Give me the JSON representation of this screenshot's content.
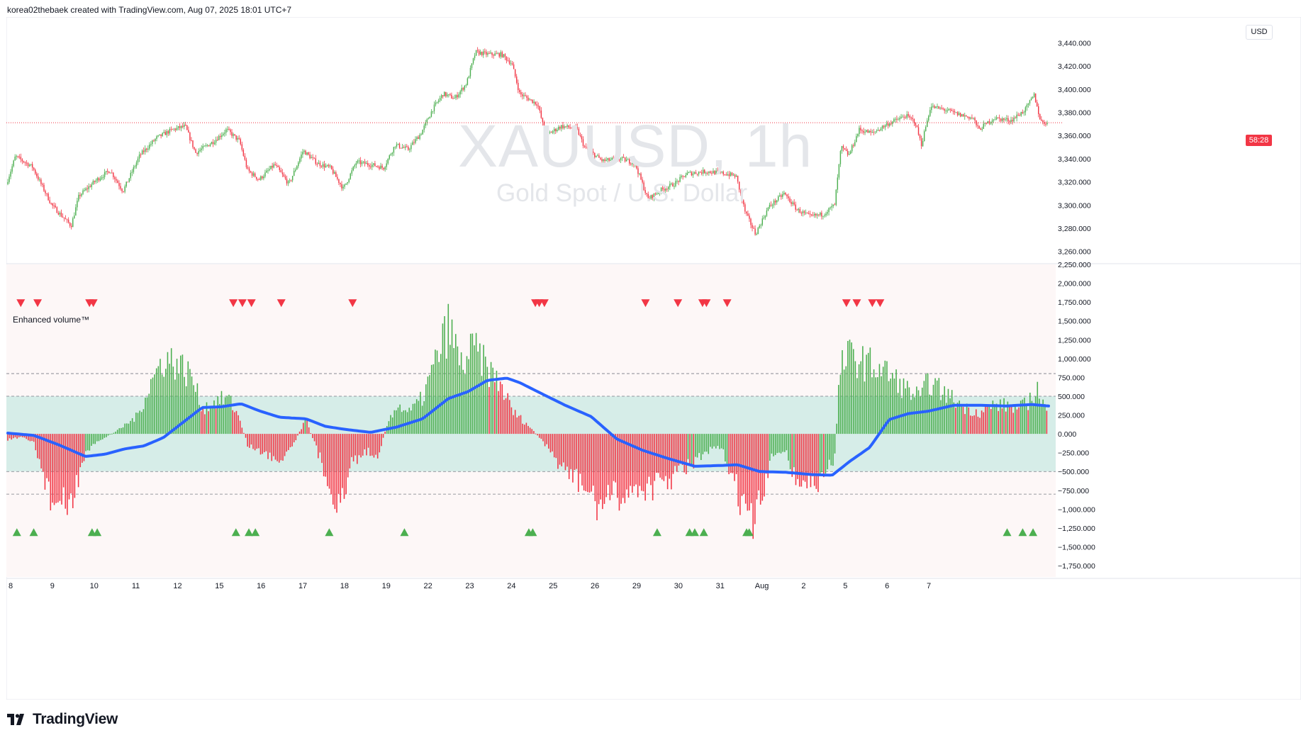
{
  "header": {
    "credit": "korea02thebaek created with TradingView.com, Aug 07, 2025 18:01 UTC+7"
  },
  "watermark": {
    "symbol": "XAUUSD, 1h",
    "description": "Gold Spot / U.S. Dollar"
  },
  "currency": "USD",
  "price_tag": "58:28",
  "indicator": {
    "label": "Enhanced volume™"
  },
  "brand": {
    "name": "TradingView"
  },
  "colors": {
    "up": "#4caf50",
    "down": "#f23645",
    "ma": "#2962ff",
    "band_fill": "#d6ede8",
    "panel_bg": "#fdf7f7",
    "grid": "#787b86",
    "last_price_line": "#f23645"
  },
  "chart_data": [
    {
      "type": "line",
      "name": "price",
      "ylim": [
        3250,
        3450
      ],
      "yticks": [
        3260,
        3280,
        3300,
        3320,
        3340,
        3360,
        3380,
        3400,
        3420,
        3440
      ],
      "ytick_labels": [
        "3,260.000",
        "3,280.000",
        "3,300.000",
        "3,320.000",
        "3,340.000",
        "3,360.000",
        "3,380.000",
        "3,400.000",
        "3,420.000",
        "3,440.000"
      ],
      "last_price": 3371,
      "keypoints": [
        [
          0,
          3318
        ],
        [
          0.7,
          3342
        ],
        [
          2,
          3333
        ],
        [
          3.5,
          3300
        ],
        [
          5,
          3282
        ],
        [
          5.6,
          3308
        ],
        [
          7,
          3322
        ],
        [
          8,
          3330
        ],
        [
          9,
          3312
        ],
        [
          10.3,
          3343
        ],
        [
          11.6,
          3358
        ],
        [
          12.8,
          3365
        ],
        [
          13.8,
          3368
        ],
        [
          14.6,
          3345
        ],
        [
          16,
          3355
        ],
        [
          17,
          3365
        ],
        [
          18,
          3355
        ],
        [
          18.6,
          3330
        ],
        [
          19.5,
          3322
        ],
        [
          20.7,
          3335
        ],
        [
          21.8,
          3318
        ],
        [
          22.9,
          3347
        ],
        [
          24,
          3336
        ],
        [
          25,
          3332
        ],
        [
          26,
          3314
        ],
        [
          27,
          3337
        ],
        [
          28.5,
          3334
        ],
        [
          29.1,
          3332
        ],
        [
          30,
          3352
        ],
        [
          31,
          3348
        ],
        [
          32,
          3362
        ],
        [
          32.9,
          3383
        ],
        [
          33.7,
          3396
        ],
        [
          34.6,
          3392
        ],
        [
          35.5,
          3405
        ],
        [
          36.2,
          3432
        ],
        [
          37.2,
          3430
        ],
        [
          38.2,
          3430
        ],
        [
          39,
          3422
        ],
        [
          39.6,
          3396
        ],
        [
          41,
          3387
        ],
        [
          41.6,
          3360
        ],
        [
          42.8,
          3368
        ],
        [
          44,
          3366
        ],
        [
          44.6,
          3350
        ],
        [
          46,
          3338
        ],
        [
          47.4,
          3340
        ],
        [
          48.5,
          3336
        ],
        [
          49.5,
          3305
        ],
        [
          50.5,
          3313
        ],
        [
          51.5,
          3318
        ],
        [
          52.5,
          3327
        ],
        [
          54,
          3329
        ],
        [
          55.5,
          3327
        ],
        [
          56.3,
          3325
        ],
        [
          57,
          3294
        ],
        [
          57.8,
          3275
        ],
        [
          58.8,
          3298
        ],
        [
          60,
          3310
        ],
        [
          61,
          3296
        ],
        [
          62,
          3290
        ],
        [
          63,
          3292
        ],
        [
          63.9,
          3300
        ],
        [
          64.4,
          3350
        ],
        [
          65,
          3343
        ],
        [
          65.8,
          3365
        ],
        [
          66.8,
          3362
        ],
        [
          68,
          3370
        ],
        [
          69.4,
          3377
        ],
        [
          70.1,
          3372
        ],
        [
          70.6,
          3352
        ],
        [
          71.3,
          3385
        ],
        [
          72.5,
          3382
        ],
        [
          73.5,
          3378
        ],
        [
          74.6,
          3375
        ],
        [
          75,
          3365
        ],
        [
          76.2,
          3375
        ],
        [
          77.5,
          3373
        ],
        [
          78.6,
          3382
        ],
        [
          79.3,
          3395
        ],
        [
          79.8,
          3372
        ],
        [
          80.3,
          3371
        ]
      ],
      "notes": [
        "3437 max near x=36.8",
        "3270 min near x=57.7"
      ]
    },
    {
      "type": "bar",
      "name": "Enhanced volume™",
      "ylim": [
        -1900000,
        2250000
      ],
      "yticks": [
        2250000,
        2000000,
        1750000,
        1500000,
        1250000,
        1000000,
        750000,
        500000,
        250000,
        0,
        -250000,
        -500000,
        -750000,
        -1000000,
        -1250000,
        -1500000,
        -1750000
      ],
      "ytick_labels": [
        "2,250.000",
        "2,000.000",
        "1,750.000",
        "1,500.000",
        "1,250.000",
        "1,000.000",
        "750.000",
        "500.000",
        "250.000",
        "0.000",
        "−250.000",
        "−500.000",
        "−750.000",
        "−1,000.000",
        "−1,250.000",
        "−1,500.000",
        "−1,750.000"
      ],
      "band": [
        -500000,
        500000
      ],
      "dashed_levels": [
        800000,
        500000,
        -500000,
        -800000
      ],
      "value_keypoints": [
        [
          0,
          -80000
        ],
        [
          1,
          -50000
        ],
        [
          2,
          -120000
        ],
        [
          3.3,
          -900000
        ],
        [
          4.8,
          -1050000
        ],
        [
          5.8,
          -350000
        ],
        [
          7,
          -100000
        ],
        [
          8.5,
          50000
        ],
        [
          10,
          250000
        ],
        [
          11,
          700000
        ],
        [
          12,
          1050000
        ],
        [
          13,
          1000000
        ],
        [
          14.2,
          800000
        ],
        [
          15,
          350000
        ],
        [
          16,
          450000
        ],
        [
          17,
          500000
        ],
        [
          17.8,
          250000
        ],
        [
          18.5,
          -150000
        ],
        [
          20,
          -300000
        ],
        [
          21,
          -350000
        ],
        [
          22,
          -150000
        ],
        [
          23,
          200000
        ],
        [
          24,
          -300000
        ],
        [
          25,
          -800000
        ],
        [
          25.8,
          -1000000
        ],
        [
          26.5,
          -400000
        ],
        [
          27.6,
          -250000
        ],
        [
          28.6,
          -280000
        ],
        [
          29.4,
          200000
        ],
        [
          30,
          400000
        ],
        [
          31,
          300000
        ],
        [
          32,
          500000
        ],
        [
          33,
          1000000
        ],
        [
          34,
          1500000
        ],
        [
          35,
          950000
        ],
        [
          36,
          1200000
        ],
        [
          37,
          900000
        ],
        [
          38,
          700000
        ],
        [
          39,
          300000
        ],
        [
          40,
          150000
        ],
        [
          41,
          -50000
        ],
        [
          42,
          -300000
        ],
        [
          43,
          -500000
        ],
        [
          44.5,
          -750000
        ],
        [
          45.5,
          -1000000
        ],
        [
          46.5,
          -900000
        ],
        [
          47.6,
          -850000
        ],
        [
          48.6,
          -750000
        ],
        [
          49.6,
          -750000
        ],
        [
          51,
          -650000
        ],
        [
          52,
          -500000
        ],
        [
          53,
          -400000
        ],
        [
          54,
          -250000
        ],
        [
          55,
          -200000
        ],
        [
          55.5,
          -400000
        ],
        [
          56.5,
          -900000
        ],
        [
          57.5,
          -1300000
        ],
        [
          58.5,
          -700000
        ],
        [
          59,
          -300000
        ],
        [
          60,
          -200000
        ],
        [
          60.6,
          -600000
        ],
        [
          61.6,
          -700000
        ],
        [
          62.6,
          -700000
        ],
        [
          63.8,
          -350000
        ],
        [
          64.2,
          900000
        ],
        [
          65,
          1100000
        ],
        [
          66,
          1000000
        ],
        [
          67.5,
          900000
        ],
        [
          68.5,
          750000
        ],
        [
          69.5,
          600000
        ],
        [
          70.5,
          500000
        ],
        [
          71,
          750000
        ],
        [
          72,
          600000
        ],
        [
          73,
          480000
        ],
        [
          74,
          350000
        ],
        [
          75,
          300000
        ],
        [
          76,
          400000
        ],
        [
          77,
          400000
        ],
        [
          78,
          350000
        ],
        [
          79.1,
          500000
        ],
        [
          79.3,
          680000
        ],
        [
          80.3,
          250000
        ]
      ],
      "ma": {
        "keypoints": [
          [
            0,
            10000
          ],
          [
            2,
            -20000
          ],
          [
            4,
            -150000
          ],
          [
            6,
            -300000
          ],
          [
            7.5,
            -270000
          ],
          [
            9,
            -200000
          ],
          [
            10.5,
            -160000
          ],
          [
            12,
            -50000
          ],
          [
            13.5,
            150000
          ],
          [
            15,
            350000
          ],
          [
            16.5,
            360000
          ],
          [
            18,
            400000
          ],
          [
            19.5,
            300000
          ],
          [
            21,
            220000
          ],
          [
            23,
            200000
          ],
          [
            24.5,
            100000
          ],
          [
            26,
            60000
          ],
          [
            28,
            20000
          ],
          [
            30,
            90000
          ],
          [
            32,
            200000
          ],
          [
            34,
            470000
          ],
          [
            35.5,
            560000
          ],
          [
            37,
            710000
          ],
          [
            38.5,
            740000
          ],
          [
            39.5,
            680000
          ],
          [
            41,
            550000
          ],
          [
            43,
            380000
          ],
          [
            45,
            230000
          ],
          [
            47,
            -70000
          ],
          [
            49,
            -220000
          ],
          [
            51,
            -330000
          ],
          [
            53,
            -430000
          ],
          [
            55,
            -420000
          ],
          [
            56.3,
            -410000
          ],
          [
            58,
            -500000
          ],
          [
            60,
            -510000
          ],
          [
            62,
            -540000
          ],
          [
            63.6,
            -550000
          ],
          [
            65,
            -360000
          ],
          [
            66.5,
            -180000
          ],
          [
            68,
            190000
          ],
          [
            69.5,
            270000
          ],
          [
            71,
            300000
          ],
          [
            73,
            380000
          ],
          [
            75,
            380000
          ],
          [
            77,
            370000
          ],
          [
            79,
            390000
          ],
          [
            80.3,
            370000
          ]
        ]
      },
      "sell_signals_x": [
        1,
        2.3,
        6.3,
        6.6,
        17.4,
        18.1,
        18.8,
        21.1,
        26.6,
        40.7,
        41,
        41.4,
        49.2,
        51.7,
        53.6,
        53.9,
        55.5,
        64.7,
        65.5,
        66.7,
        67.3
      ],
      "buy_signals_x": [
        0.7,
        2,
        6.5,
        6.9,
        17.6,
        18.6,
        19.1,
        24.8,
        30.6,
        40.2,
        40.5,
        50.1,
        52.6,
        53,
        53.7,
        57,
        57.2,
        77.1,
        78.3,
        79.1
      ]
    }
  ],
  "x_axis": {
    "labels": [
      {
        "t": "8",
        "x": 0
      },
      {
        "t": "9",
        "x": 3.22
      },
      {
        "t": "10",
        "x": 6.44
      },
      {
        "t": "11",
        "x": 9.66
      },
      {
        "t": "12",
        "x": 12.88
      },
      {
        "t": "15",
        "x": 16.1
      },
      {
        "t": "16",
        "x": 19.32
      },
      {
        "t": "17",
        "x": 22.54
      },
      {
        "t": "18",
        "x": 25.76
      },
      {
        "t": "19",
        "x": 28.98
      },
      {
        "t": "22",
        "x": 32.2
      },
      {
        "t": "23",
        "x": 35.42
      },
      {
        "t": "24",
        "x": 38.64
      },
      {
        "t": "25",
        "x": 41.86
      },
      {
        "t": "26",
        "x": 45.08
      },
      {
        "t": "29",
        "x": 48.3
      },
      {
        "t": "30",
        "x": 51.52
      },
      {
        "t": "31",
        "x": 54.74
      },
      {
        "t": "Aug",
        "x": 57.96
      },
      {
        "t": "2",
        "x": 61.18
      },
      {
        "t": "5",
        "x": 64.4
      },
      {
        "t": "6",
        "x": 67.62
      },
      {
        "t": "7",
        "x": 70.84
      }
    ]
  }
}
